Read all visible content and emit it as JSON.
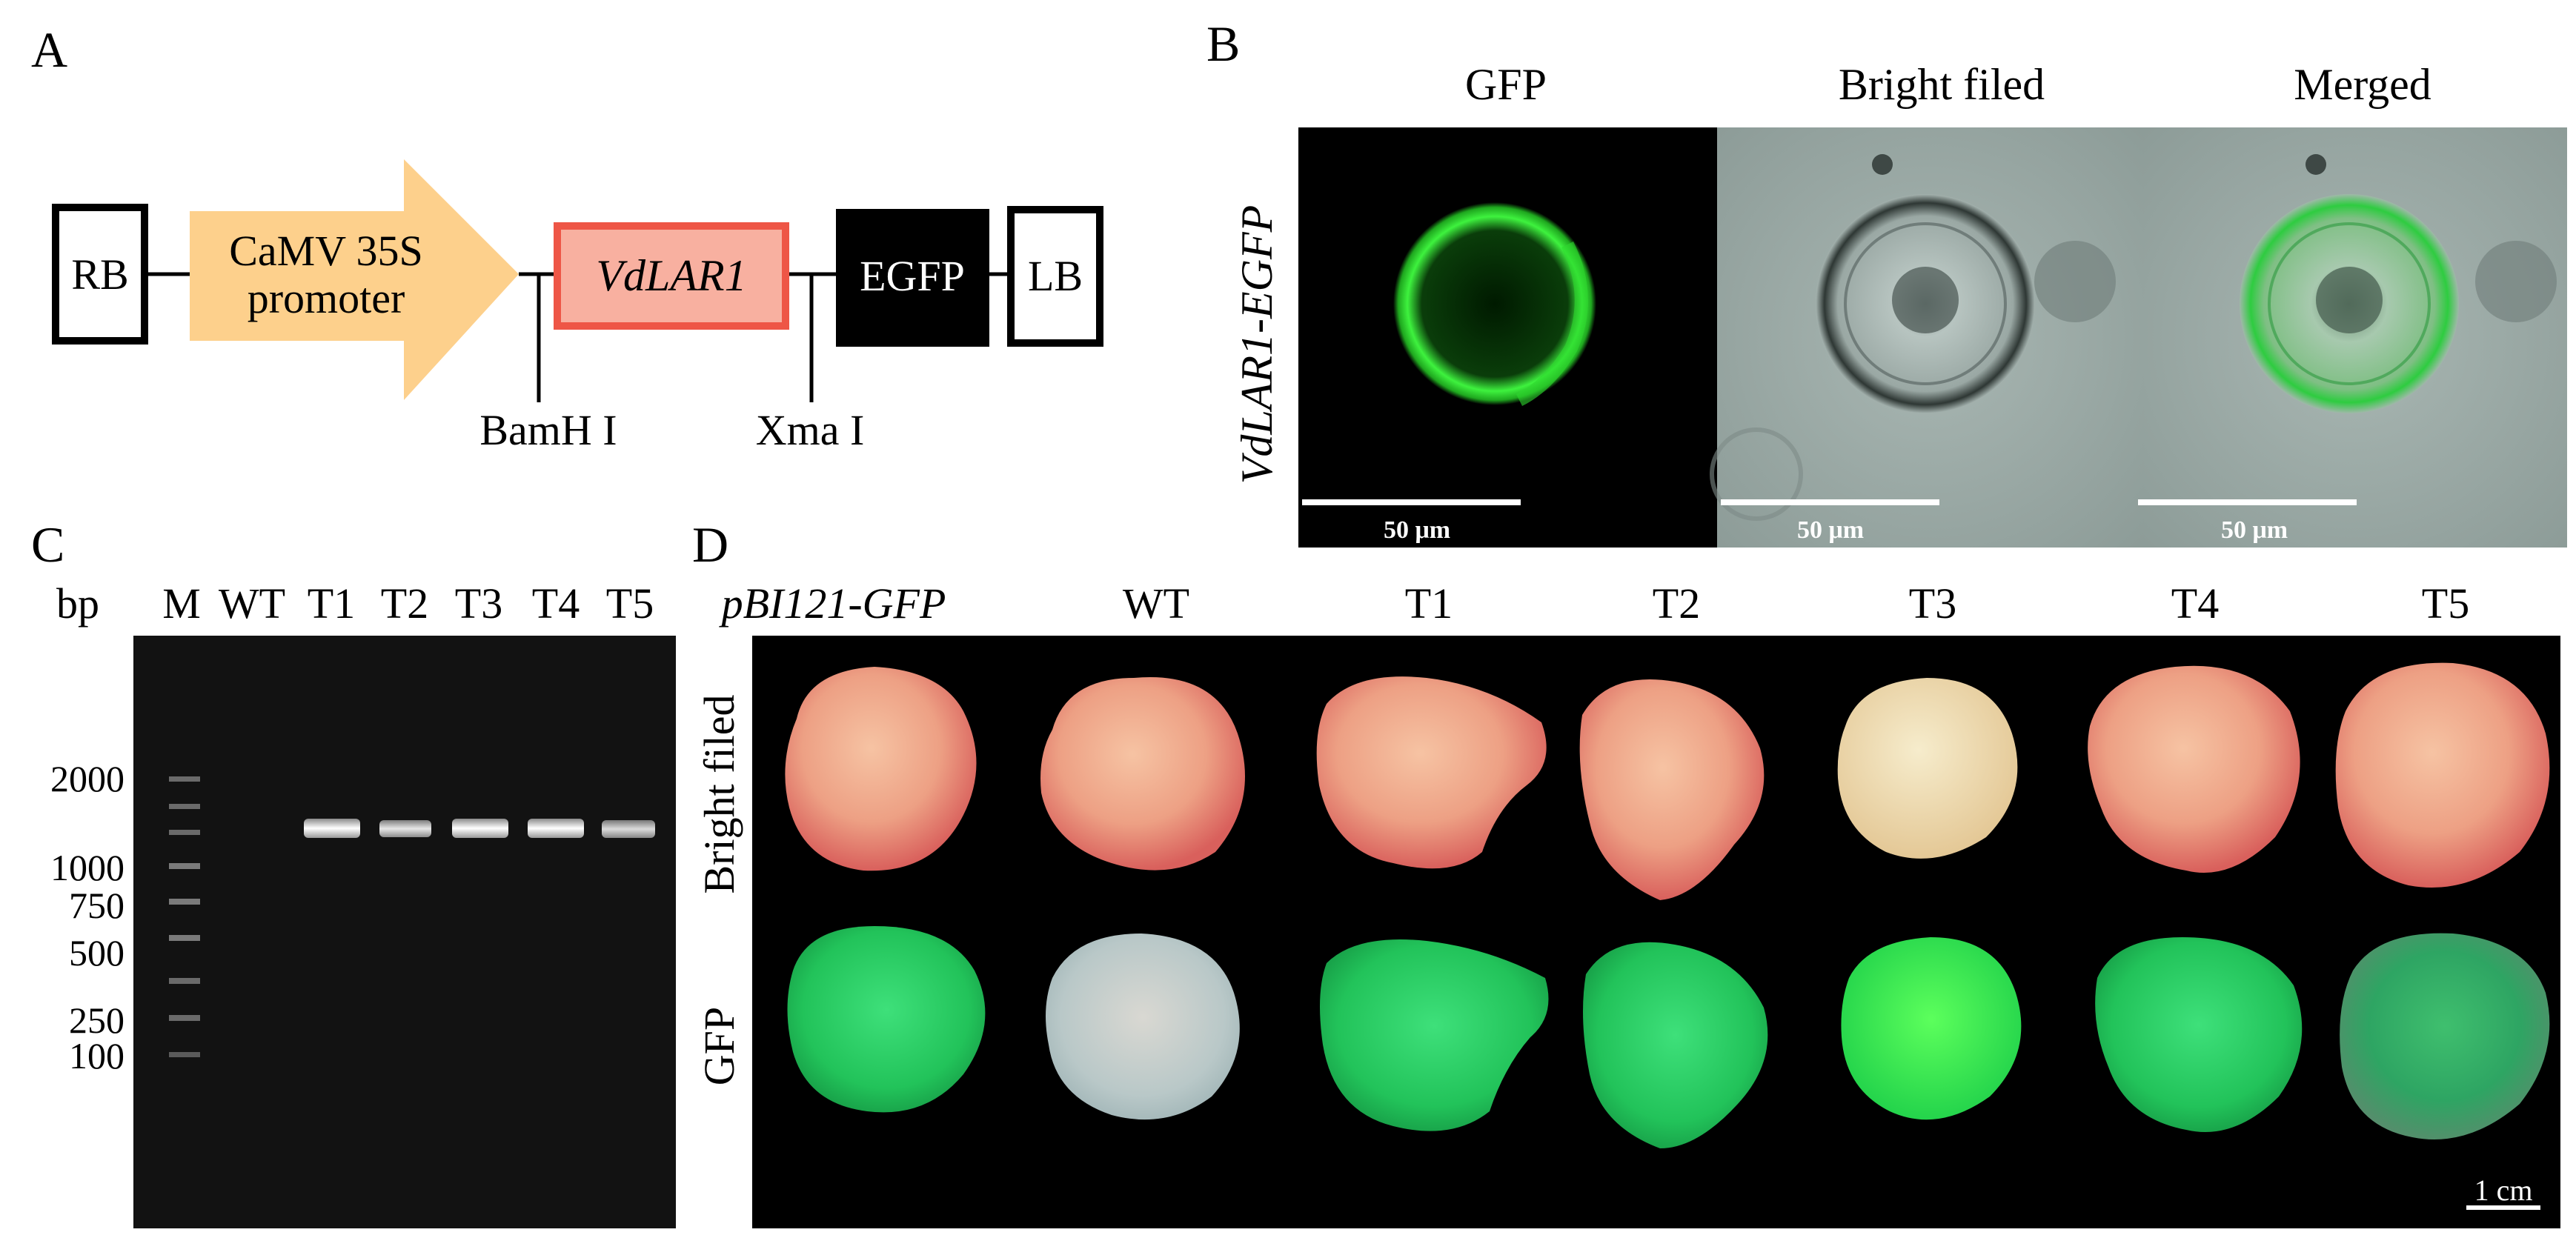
{
  "panels": {
    "a": "A",
    "b": "B",
    "c": "C",
    "d": "D"
  },
  "construct": {
    "rb": "RB",
    "promoter_line1": "CaMV 35S",
    "promoter_line2": "promoter",
    "gene": "VdLAR1",
    "reporter": "EGFP",
    "lb": "LB",
    "site1": "BamH I",
    "site2": "Xma I",
    "colors": {
      "promoter_fill": "#FDD08C",
      "gene_fill": "#F8B0A0",
      "gene_border": "#EE5646",
      "box_border": "#000000"
    }
  },
  "microscopy": {
    "columns": [
      "GFP",
      "Bright filed",
      "Merged"
    ],
    "row_label": "VdLAR1-EGFP",
    "scale_bar": "50 μm"
  },
  "gel": {
    "bp_label": "bp",
    "lanes": [
      "M",
      "WT",
      "T1",
      "T2",
      "T3",
      "T4",
      "T5"
    ],
    "marker_sizes": [
      "2000",
      "1000",
      "750",
      "500",
      "250",
      "100"
    ]
  },
  "calli": {
    "columns": [
      "pBI121-GFP",
      "WT",
      "T1",
      "T2",
      "T3",
      "T4",
      "T5"
    ],
    "row_labels": [
      "Bright filed",
      "GFP"
    ],
    "scale_bar": "1 cm"
  }
}
